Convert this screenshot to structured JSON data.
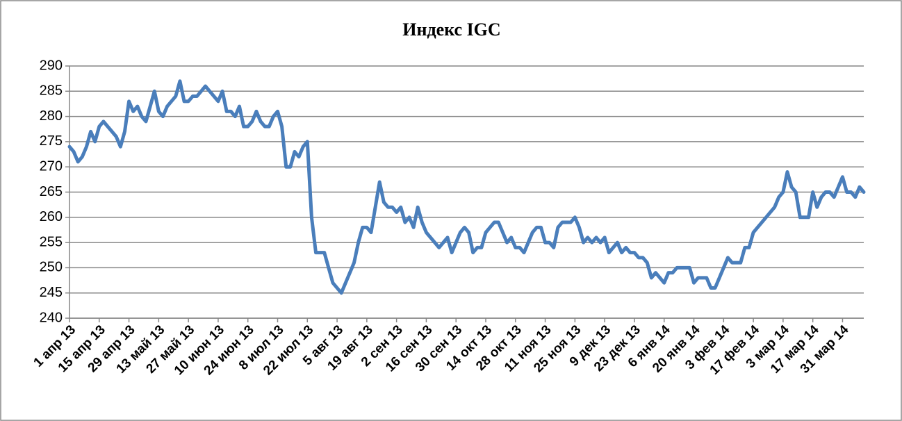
{
  "chart_data": {
    "type": "line",
    "title": "Индекс IGC",
    "categories": [
      "1 апр 13",
      null,
      null,
      null,
      null,
      null,
      null,
      "15 апр 13",
      null,
      null,
      null,
      null,
      null,
      null,
      "29 апр 13",
      null,
      null,
      null,
      null,
      null,
      null,
      "13 май 13",
      null,
      null,
      null,
      null,
      null,
      null,
      "27 май 13",
      null,
      null,
      null,
      null,
      null,
      null,
      "10 июн 13",
      null,
      null,
      null,
      null,
      null,
      null,
      "24 июн 13",
      null,
      null,
      null,
      null,
      null,
      null,
      "8 июл 13",
      null,
      null,
      null,
      null,
      null,
      null,
      "22 июл 13",
      null,
      null,
      null,
      null,
      null,
      null,
      "5 авг 13",
      null,
      null,
      null,
      null,
      null,
      null,
      "19 авг 13",
      null,
      null,
      null,
      null,
      null,
      null,
      "2 сен 13",
      null,
      null,
      null,
      null,
      null,
      null,
      "16 сен 13",
      null,
      null,
      null,
      null,
      null,
      null,
      "30 сен 13",
      null,
      null,
      null,
      null,
      null,
      null,
      "14 окт 13",
      null,
      null,
      null,
      null,
      null,
      null,
      "28 окт 13",
      null,
      null,
      null,
      null,
      null,
      null,
      "11 ноя 13",
      null,
      null,
      null,
      null,
      null,
      null,
      "25 ноя 13",
      null,
      null,
      null,
      null,
      null,
      null,
      "9 дек 13",
      null,
      null,
      null,
      null,
      null,
      null,
      "23 дек 13",
      null,
      null,
      null,
      null,
      null,
      null,
      "6 янв 14",
      null,
      null,
      null,
      null,
      null,
      null,
      "20 янв 14",
      null,
      null,
      null,
      null,
      null,
      null,
      "3 фев 14",
      null,
      null,
      null,
      null,
      null,
      null,
      "17 фев 14",
      null,
      null,
      null,
      null,
      null,
      null,
      "3 мар 14",
      null,
      null,
      null,
      null,
      null,
      null,
      "17 мар 14",
      null,
      null,
      null,
      null,
      null,
      null,
      "31 мар 14",
      null,
      null,
      null,
      null,
      null
    ],
    "values": [
      274,
      273,
      271,
      272,
      274,
      277,
      275,
      278,
      279,
      278,
      277,
      276,
      274,
      277,
      283,
      281,
      282,
      280,
      279,
      282,
      285,
      281,
      280,
      282,
      283,
      284,
      287,
      283,
      283,
      284,
      284,
      285,
      286,
      285,
      284,
      283,
      285,
      281,
      281,
      280,
      282,
      278,
      278,
      279,
      281,
      279,
      278,
      278,
      280,
      281,
      278,
      270,
      270,
      273,
      272,
      274,
      275,
      260,
      253,
      253,
      253,
      250,
      247,
      246,
      245,
      247,
      249,
      251,
      255,
      258,
      258,
      257,
      262,
      267,
      263,
      262,
      262,
      261,
      262,
      259,
      260,
      258,
      262,
      259,
      257,
      256,
      255,
      254,
      255,
      256,
      253,
      255,
      257,
      258,
      257,
      253,
      254,
      254,
      257,
      258,
      259,
      259,
      257,
      255,
      256,
      254,
      254,
      253,
      255,
      257,
      258,
      258,
      255,
      255,
      254,
      258,
      259,
      259,
      259,
      260,
      258,
      255,
      256,
      255,
      256,
      255,
      256,
      253,
      254,
      255,
      253,
      254,
      253,
      253,
      252,
      252,
      251,
      248,
      249,
      248,
      247,
      249,
      249,
      250,
      250,
      250,
      250,
      247,
      248,
      248,
      248,
      246,
      246,
      248,
      250,
      252,
      251,
      251,
      251,
      254,
      254,
      257,
      258,
      259,
      260,
      261,
      262,
      264,
      265,
      269,
      266,
      265,
      260,
      260,
      260,
      265,
      262,
      264,
      265,
      265,
      264,
      266,
      268,
      265,
      265,
      264,
      266,
      265
    ],
    "color": "#4a7ebb",
    "ylim": [
      240,
      290
    ],
    "yticks": [
      240,
      245,
      250,
      255,
      260,
      265,
      270,
      275,
      280,
      285,
      290
    ],
    "grid": true
  }
}
